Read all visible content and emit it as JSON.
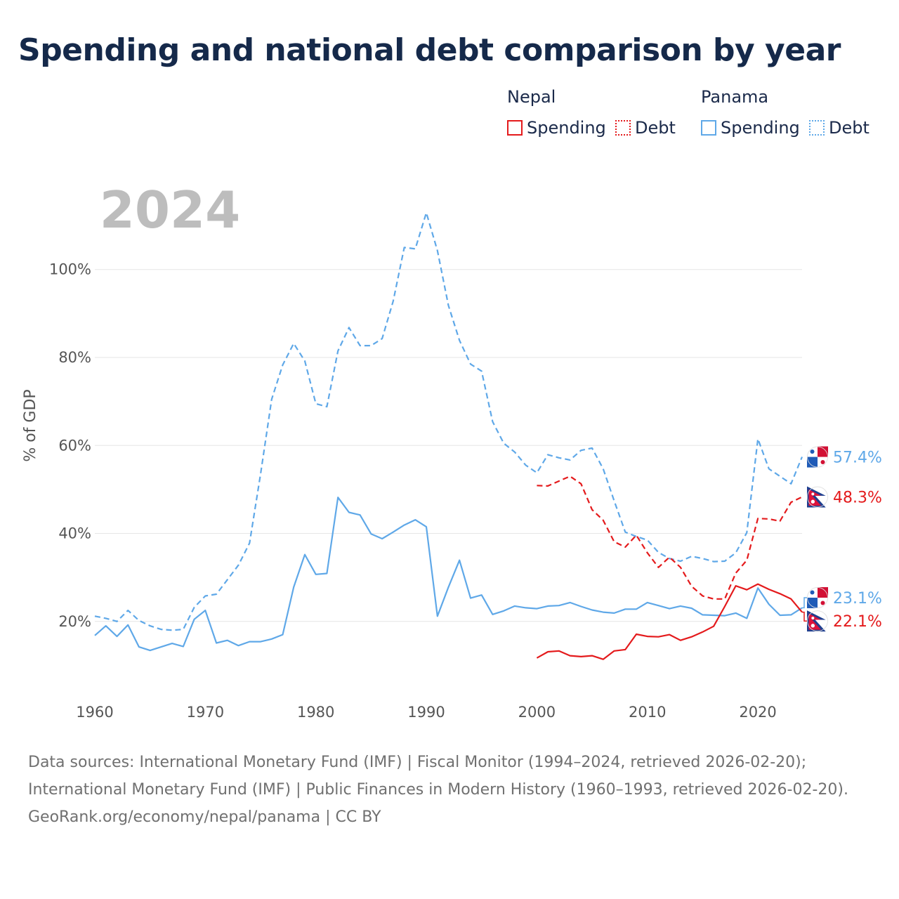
{
  "title": "Spending and national debt comparison by year",
  "legend": {
    "groups": [
      {
        "country": "Nepal",
        "color": "#e41a1c",
        "spending_label": "Spending",
        "debt_label": "Debt"
      },
      {
        "country": "Panama",
        "color": "#5fa8e8",
        "spending_label": "Spending",
        "debt_label": "Debt"
      }
    ]
  },
  "chart_data": {
    "type": "line",
    "title": "Spending and national debt comparison by year",
    "current_year": "2024",
    "xlabel": "",
    "ylabel": "% of GDP",
    "xlim": [
      1960,
      2024
    ],
    "ylim": [
      4,
      118
    ],
    "x_ticks": [
      1960,
      1970,
      1980,
      1990,
      2000,
      2010,
      2020
    ],
    "y_ticks": [
      20,
      40,
      60,
      80,
      100
    ],
    "y_tick_labels": [
      "20%",
      "40%",
      "60%",
      "80%",
      "100%"
    ],
    "grid": true,
    "series": [
      {
        "name": "Panama Debt",
        "country": "Panama",
        "metric": "Debt",
        "color": "#5fa8e8",
        "dash": "dashed",
        "start_year": 1960,
        "values": [
          21.2,
          20.7,
          20.0,
          22.5,
          20.2,
          19.0,
          18.2,
          18.0,
          18.2,
          23.2,
          25.8,
          26.2,
          29.5,
          32.8,
          37.8,
          53.5,
          70.5,
          78.3,
          83.2,
          79.2,
          69.5,
          68.8,
          81.5,
          86.8,
          82.7,
          82.7,
          84.3,
          92.8,
          105.0,
          104.7,
          112.9,
          104.3,
          91.8,
          83.9,
          78.5,
          76.9,
          65.4,
          60.5,
          58.5,
          55.5,
          53.8,
          57.9,
          57.2,
          56.7,
          58.9,
          59.4,
          54.7,
          47.4,
          40.3,
          39.3,
          38.5,
          35.7,
          34.3,
          33.7,
          34.8,
          34.3,
          33.6,
          33.7,
          35.6,
          40.2,
          61.5,
          54.7,
          53.0,
          51.3,
          57.4
        ]
      },
      {
        "name": "Panama Spending",
        "country": "Panama",
        "metric": "Spending",
        "color": "#5fa8e8",
        "dash": "solid",
        "start_year": 1960,
        "values": [
          16.8,
          19.0,
          16.6,
          19.2,
          14.2,
          13.4,
          14.2,
          15.0,
          14.3,
          20.5,
          22.5,
          15.1,
          15.7,
          14.5,
          15.4,
          15.4,
          16.0,
          17.0,
          27.8,
          35.2,
          30.7,
          30.9,
          48.2,
          44.8,
          44.2,
          39.9,
          38.8,
          40.3,
          41.9,
          43.1,
          41.5,
          21.2,
          27.8,
          33.9,
          25.3,
          26.0,
          21.6,
          22.4,
          23.5,
          23.1,
          22.9,
          23.5,
          23.6,
          24.3,
          23.4,
          22.6,
          22.1,
          21.9,
          22.8,
          22.8,
          24.3,
          23.6,
          22.9,
          23.5,
          23.0,
          21.5,
          21.4,
          21.3,
          21.9,
          20.7,
          27.6,
          23.9,
          21.4,
          21.5,
          23.1
        ]
      },
      {
        "name": "Nepal Debt",
        "country": "Nepal",
        "metric": "Debt",
        "color": "#e41a1c",
        "dash": "dashed",
        "start_year": 2000,
        "values": [
          50.9,
          50.8,
          51.9,
          53.0,
          51.3,
          45.4,
          43.0,
          38.1,
          36.9,
          39.6,
          35.6,
          32.3,
          34.6,
          32.3,
          28.0,
          25.8,
          25.1,
          25.1,
          31.0,
          33.9,
          43.4,
          43.3,
          42.8,
          47.1,
          48.3
        ]
      },
      {
        "name": "Nepal Spending",
        "country": "Nepal",
        "metric": "Spending",
        "color": "#e41a1c",
        "dash": "solid",
        "start_year": 2000,
        "values": [
          11.7,
          13.1,
          13.3,
          12.2,
          12.0,
          12.2,
          11.4,
          13.3,
          13.6,
          17.1,
          16.6,
          16.5,
          17.0,
          15.7,
          16.5,
          17.6,
          18.9,
          23.4,
          28.1,
          27.2,
          28.5,
          27.3,
          26.3,
          25.1,
          22.1
        ]
      }
    ],
    "end_labels": [
      {
        "series": "Panama Debt",
        "text": "57.4%",
        "value": 57.4,
        "label_value": 57.4,
        "color": "#5fa8e8",
        "flag": "panama"
      },
      {
        "series": "Nepal Debt",
        "text": "48.3%",
        "value": 48.3,
        "label_value": 48.3,
        "color": "#e41a1c",
        "flag": "nepal"
      },
      {
        "series": "Panama Spending",
        "text": "23.1%",
        "value": 23.1,
        "label_value": 25.4,
        "color": "#5fa8e8",
        "flag": "panama"
      },
      {
        "series": "Nepal Spending",
        "text": "22.1%",
        "value": 22.1,
        "label_value": 20.1,
        "color": "#e41a1c",
        "flag": "nepal"
      }
    ]
  },
  "footer": {
    "sources": "Data sources: International Monetary Fund (IMF) | Fiscal Monitor (1994–2024, retrieved 2026-02-20); International Monetary Fund (IMF) | Public Finances in Modern History (1960–1993, retrieved 2026-02-20).",
    "attribution": "GeoRank.org/economy/nepal/panama | CC BY"
  }
}
